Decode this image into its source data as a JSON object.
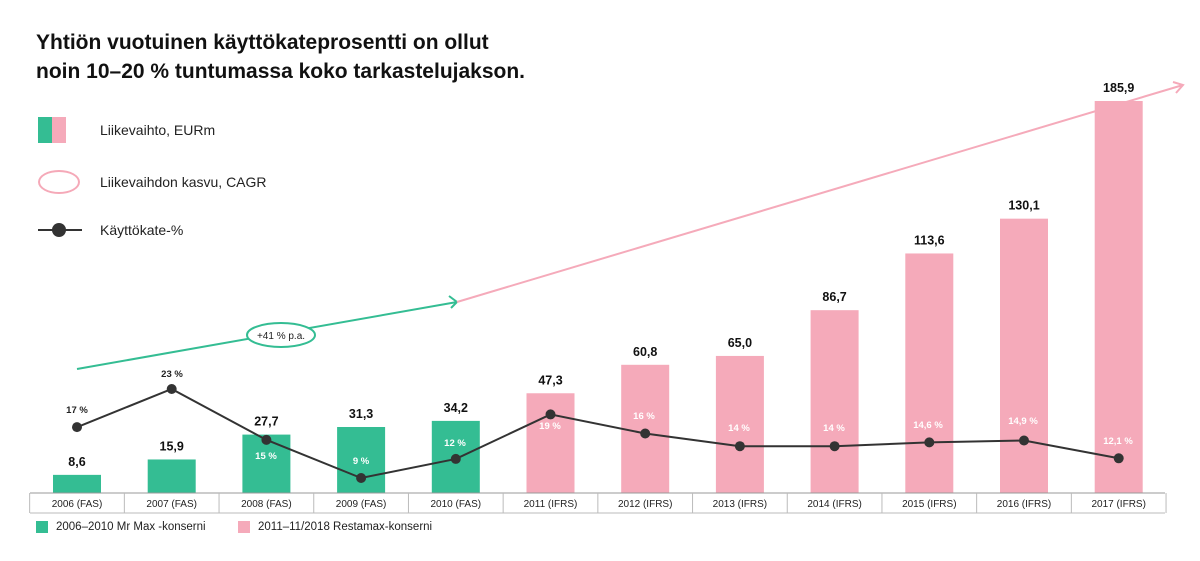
{
  "title_lines": [
    "Yhtiön vuotuinen käyttökateprosentti on ollut",
    "noin 10–20 % tuntumassa koko tarkastelujakson."
  ],
  "legend": {
    "revenue": "Liikevaihto, EURm",
    "cagr": "Liikevaihdon kasvu, CAGR",
    "ebitda": "Käyttökate-%"
  },
  "bottom_legend": {
    "green": "2006–2010 Mr Max -konserni",
    "pink": "2011–11/2018 Restamax-konserni"
  },
  "colors": {
    "green": "#34bd93",
    "pink": "#f5aaba",
    "line": "#333333"
  },
  "chart_data": {
    "type": "bar",
    "categories": [
      "2006 (FAS)",
      "2007 (FAS)",
      "2008 (FAS)",
      "2009 (FAS)",
      "2010 (FAS)",
      "2011 (IFRS)",
      "2012 (IFRS)",
      "2013 (IFRS)",
      "2014 (IFRS)",
      "2015 (IFRS)",
      "2016 (IFRS)",
      "2017 (IFRS)"
    ],
    "series": [
      {
        "name": "Liikevaihto, EURm",
        "values": [
          8.6,
          15.9,
          27.7,
          31.3,
          34.2,
          47.3,
          60.8,
          65.0,
          86.7,
          113.6,
          130.1,
          185.9
        ],
        "value_labels": [
          "8,6",
          "15,9",
          "27,7",
          "31,3",
          "34,2",
          "47,3",
          "60,8",
          "65,0",
          "86,7",
          "113,6",
          "130,1",
          "185,9"
        ],
        "colors": [
          "green",
          "green",
          "green",
          "green",
          "green",
          "pink",
          "pink",
          "pink",
          "pink",
          "pink",
          "pink",
          "pink"
        ]
      },
      {
        "name": "Käyttökate-%",
        "type": "line",
        "values": [
          17,
          23,
          15,
          9,
          12,
          19,
          16,
          14,
          14,
          14.6,
          14.9,
          12.1
        ],
        "value_labels": [
          "17 %",
          "23 %",
          "15 %",
          "9 %",
          "12 %",
          "19 %",
          "16 %",
          "14 %",
          "14 %",
          "14,6 %",
          "14,9 %",
          "12,1 %"
        ]
      }
    ],
    "cagr_annotation": "+41 % p.a.",
    "ylim": [
      0,
      190
    ],
    "ebitda_ylim": [
      0,
      28
    ],
    "grid": false,
    "legend_placement": "top-left"
  }
}
